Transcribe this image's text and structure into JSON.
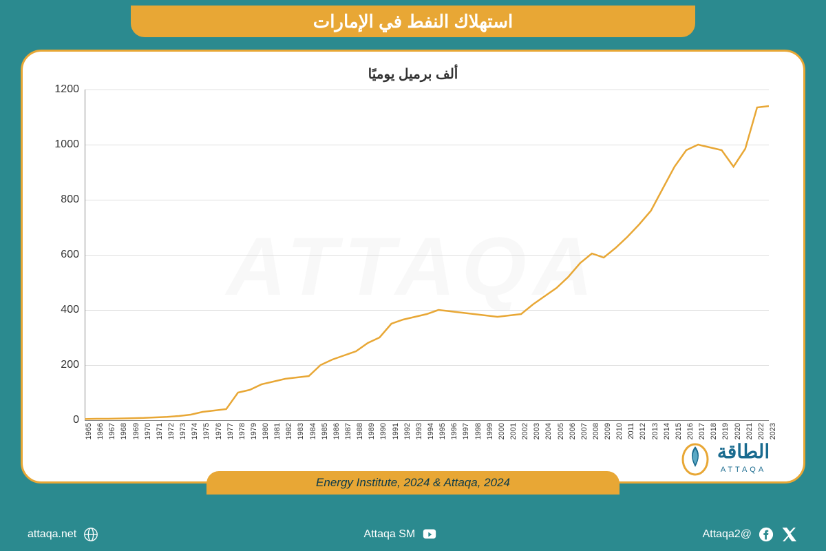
{
  "header": {
    "title": "استهلاك النفط في الإمارات"
  },
  "chart": {
    "type": "line",
    "subtitle": "ألف برميل يوميًا",
    "line_color": "#e8a735",
    "line_width": 2.5,
    "background_color": "#ffffff",
    "grid_color": "#dddddd",
    "ylim": [
      0,
      1200
    ],
    "ytick_step": 200,
    "yticks": [
      0,
      200,
      400,
      600,
      800,
      1000,
      1200
    ],
    "x_labels": [
      "1965",
      "1966",
      "1967",
      "1968",
      "1969",
      "1970",
      "1971",
      "1972",
      "1973",
      "1974",
      "1975",
      "1976",
      "1977",
      "1978",
      "1979",
      "1980",
      "1981",
      "1982",
      "1983",
      "1984",
      "1985",
      "1986",
      "1987",
      "1988",
      "1989",
      "1990",
      "1991",
      "1992",
      "1993",
      "1994",
      "1995",
      "1996",
      "1997",
      "1998",
      "1999",
      "2000",
      "2001",
      "2002",
      "2003",
      "2004",
      "2005",
      "2006",
      "2007",
      "2008",
      "2009",
      "2010",
      "2011",
      "2012",
      "2013",
      "2014",
      "2015",
      "2016",
      "2017",
      "2018",
      "2019",
      "2020",
      "2021",
      "2022",
      "2023"
    ],
    "values": [
      4,
      5,
      5,
      6,
      7,
      8,
      10,
      12,
      15,
      20,
      30,
      35,
      40,
      100,
      110,
      130,
      140,
      150,
      155,
      160,
      200,
      220,
      235,
      250,
      280,
      300,
      350,
      365,
      375,
      385,
      400,
      395,
      390,
      385,
      380,
      375,
      380,
      385,
      420,
      450,
      480,
      520,
      570,
      605,
      590,
      625,
      665,
      710,
      760,
      840,
      920,
      980,
      1000,
      990,
      980,
      920,
      985,
      1135,
      1140
    ],
    "x_label_fontsize": 11,
    "y_label_fontsize": 16
  },
  "source": {
    "text": "Energy Institute, 2024 & Attaqa, 2024"
  },
  "brand": {
    "name_ar": "الطاقة",
    "name_en": "ATTAQA",
    "color_primary": "#1a6b8f",
    "color_accent": "#e8a735"
  },
  "watermark": {
    "text": "ATTAQA"
  },
  "footer": {
    "twitter_handle": "@Attaqa2",
    "youtube_handle": "Attaqa SM",
    "website": "attaqa.net"
  },
  "colors": {
    "page_bg": "#2b8a8f",
    "banner_bg": "#e8a735",
    "card_border": "#e8a735",
    "text_white": "#ffffff",
    "text_dark": "#0a3a4a"
  }
}
